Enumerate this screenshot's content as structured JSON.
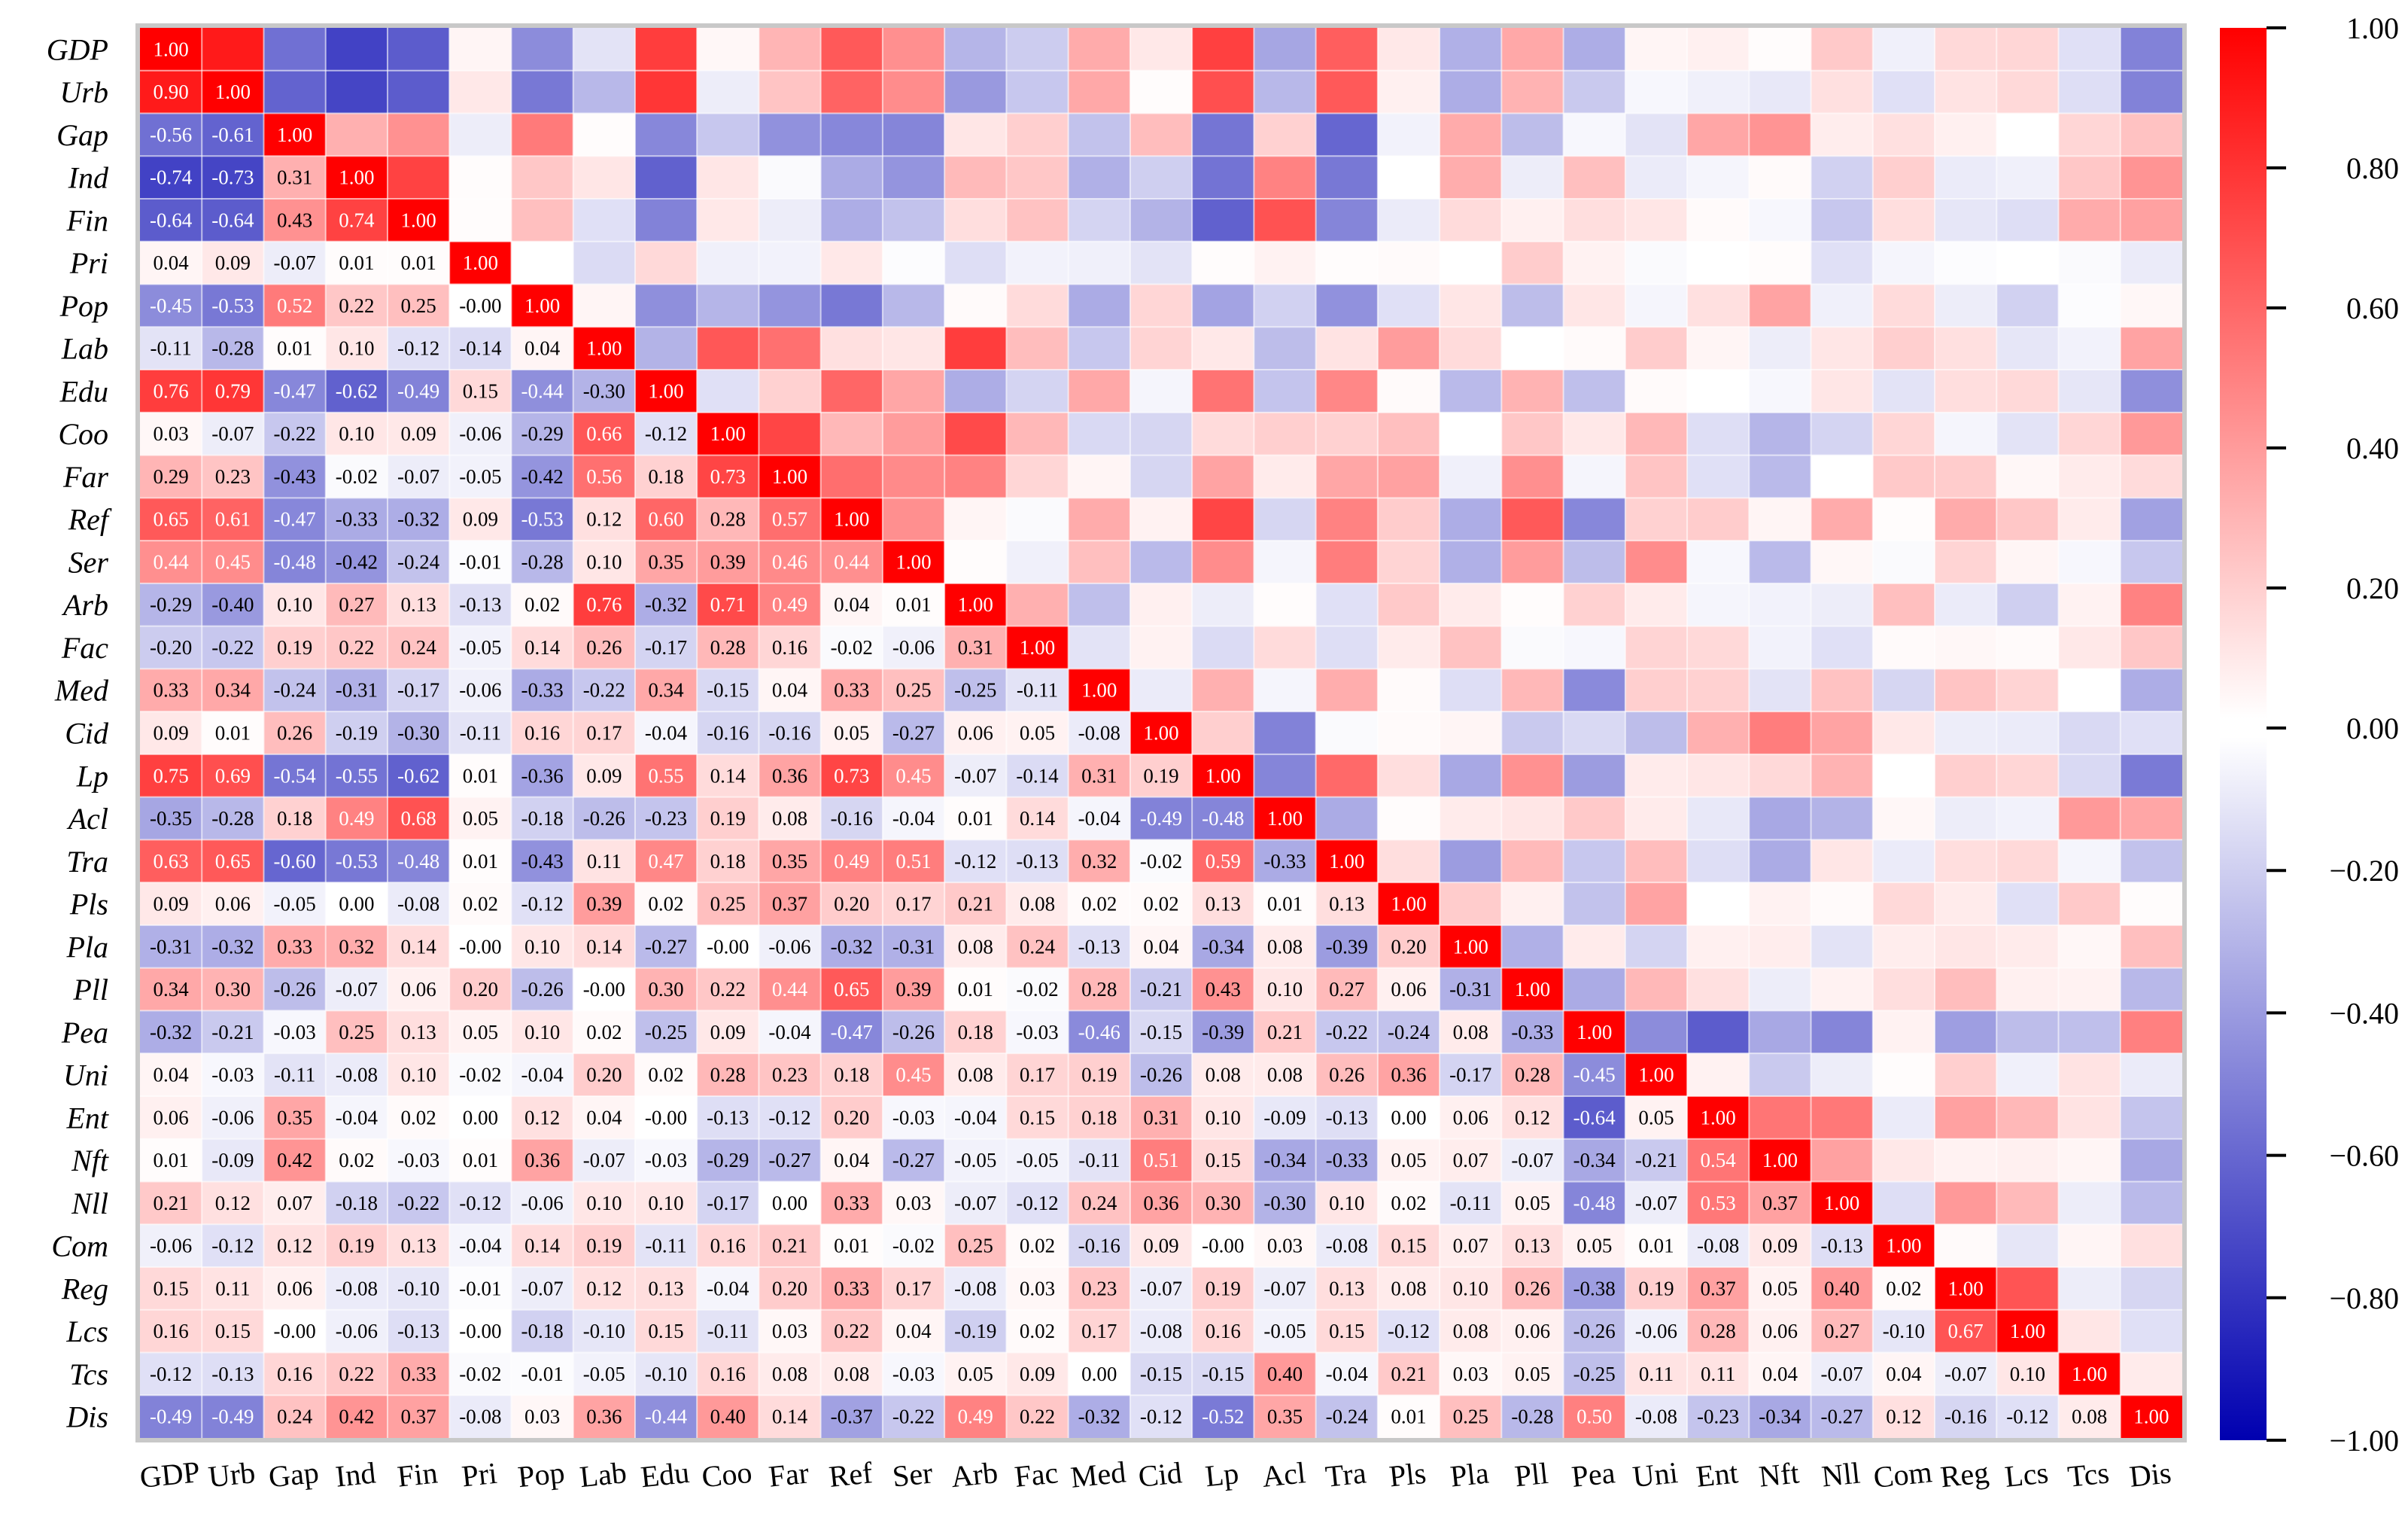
{
  "chart_data": {
    "type": "heatmap",
    "title": "",
    "variables": [
      "GDP",
      "Urb",
      "Gap",
      "Ind",
      "Fin",
      "Pri",
      "Pop",
      "Lab",
      "Edu",
      "Coo",
      "Far",
      "Ref",
      "Ser",
      "Arb",
      "Fac",
      "Med",
      "Cid",
      "Lp",
      "Acl",
      "Tra",
      "Pls",
      "Pla",
      "Pll",
      "Pea",
      "Uni",
      "Ent",
      "Nft",
      "Nll",
      "Com",
      "Reg",
      "Lcs",
      "Tcs",
      "Dis"
    ],
    "lower_triangle": [
      [
        1.0
      ],
      [
        0.9,
        1.0
      ],
      [
        -0.56,
        -0.61,
        1.0
      ],
      [
        -0.74,
        -0.73,
        0.31,
        1.0
      ],
      [
        -0.64,
        -0.64,
        0.43,
        0.74,
        1.0
      ],
      [
        0.04,
        0.09,
        -0.07,
        0.01,
        0.01,
        1.0
      ],
      [
        -0.45,
        -0.53,
        0.52,
        0.22,
        0.25,
        -0.0,
        1.0
      ],
      [
        -0.11,
        -0.28,
        0.01,
        0.1,
        -0.12,
        -0.14,
        0.04,
        1.0
      ],
      [
        0.76,
        0.79,
        -0.47,
        -0.62,
        -0.49,
        0.15,
        -0.44,
        -0.3,
        1.0
      ],
      [
        0.03,
        -0.07,
        -0.22,
        0.1,
        0.09,
        -0.06,
        -0.29,
        0.66,
        -0.12,
        1.0
      ],
      [
        0.29,
        0.23,
        -0.43,
        -0.02,
        -0.07,
        -0.05,
        -0.42,
        0.56,
        0.18,
        0.73,
        1.0
      ],
      [
        0.65,
        0.61,
        -0.47,
        -0.33,
        -0.32,
        0.09,
        -0.53,
        0.12,
        0.6,
        0.28,
        0.57,
        1.0
      ],
      [
        0.44,
        0.45,
        -0.48,
        -0.42,
        -0.24,
        -0.01,
        -0.28,
        0.1,
        0.35,
        0.39,
        0.46,
        0.44,
        1.0
      ],
      [
        -0.29,
        -0.4,
        0.1,
        0.27,
        0.13,
        -0.13,
        0.02,
        0.76,
        -0.32,
        0.71,
        0.49,
        0.04,
        0.01,
        1.0
      ],
      [
        -0.2,
        -0.22,
        0.19,
        0.22,
        0.24,
        -0.05,
        0.14,
        0.26,
        -0.17,
        0.28,
        0.16,
        -0.02,
        -0.06,
        0.31,
        1.0
      ],
      [
        0.33,
        0.34,
        -0.24,
        -0.31,
        -0.17,
        -0.06,
        -0.33,
        -0.22,
        0.34,
        -0.15,
        0.04,
        0.33,
        0.25,
        -0.25,
        -0.11,
        1.0
      ],
      [
        0.09,
        0.01,
        0.26,
        -0.19,
        -0.3,
        -0.11,
        0.16,
        0.17,
        -0.04,
        -0.16,
        -0.16,
        0.05,
        -0.27,
        0.06,
        0.05,
        -0.08,
        1.0
      ],
      [
        0.75,
        0.69,
        -0.54,
        -0.55,
        -0.62,
        0.01,
        -0.36,
        0.09,
        0.55,
        0.14,
        0.36,
        0.73,
        0.45,
        -0.07,
        -0.14,
        0.31,
        0.19,
        1.0
      ],
      [
        -0.35,
        -0.28,
        0.18,
        0.49,
        0.68,
        0.05,
        -0.18,
        -0.26,
        -0.23,
        0.19,
        0.08,
        -0.16,
        -0.04,
        0.01,
        0.14,
        -0.04,
        -0.49,
        -0.48,
        1.0
      ],
      [
        0.63,
        0.65,
        -0.6,
        -0.53,
        -0.48,
        0.01,
        -0.43,
        0.11,
        0.47,
        0.18,
        0.35,
        0.49,
        0.51,
        -0.12,
        -0.13,
        0.32,
        -0.02,
        0.59,
        -0.33,
        1.0
      ],
      [
        0.09,
        0.06,
        -0.05,
        0.0,
        -0.08,
        0.02,
        -0.12,
        0.39,
        0.02,
        0.25,
        0.37,
        0.2,
        0.17,
        0.21,
        0.08,
        0.02,
        0.02,
        0.13,
        0.01,
        0.13,
        1.0
      ],
      [
        -0.31,
        -0.32,
        0.33,
        0.32,
        0.14,
        -0.0,
        0.1,
        0.14,
        -0.27,
        -0.0,
        -0.06,
        -0.32,
        -0.31,
        0.08,
        0.24,
        -0.13,
        0.04,
        -0.34,
        0.08,
        -0.39,
        0.2,
        1.0
      ],
      [
        0.34,
        0.3,
        -0.26,
        -0.07,
        0.06,
        0.2,
        -0.26,
        -0.0,
        0.3,
        0.22,
        0.44,
        0.65,
        0.39,
        0.01,
        -0.02,
        0.28,
        -0.21,
        0.43,
        0.1,
        0.27,
        0.06,
        -0.31,
        1.0
      ],
      [
        -0.32,
        -0.21,
        -0.03,
        0.25,
        0.13,
        0.05,
        0.1,
        0.02,
        -0.25,
        0.09,
        -0.04,
        -0.47,
        -0.26,
        0.18,
        -0.03,
        -0.46,
        -0.15,
        -0.39,
        0.21,
        -0.22,
        -0.24,
        0.08,
        -0.33,
        1.0
      ],
      [
        0.04,
        -0.03,
        -0.11,
        -0.08,
        0.1,
        -0.02,
        -0.04,
        0.2,
        0.02,
        0.28,
        0.23,
        0.18,
        0.45,
        0.08,
        0.17,
        0.19,
        -0.26,
        0.08,
        0.08,
        0.26,
        0.36,
        -0.17,
        0.28,
        -0.45,
        1.0
      ],
      [
        0.06,
        -0.06,
        0.35,
        -0.04,
        0.02,
        0.0,
        0.12,
        0.04,
        -0.0,
        -0.13,
        -0.12,
        0.2,
        -0.03,
        -0.04,
        0.15,
        0.18,
        0.31,
        0.1,
        -0.09,
        -0.13,
        0.0,
        0.06,
        0.12,
        -0.64,
        0.05,
        1.0
      ],
      [
        0.01,
        -0.09,
        0.42,
        0.02,
        -0.03,
        0.01,
        0.36,
        -0.07,
        -0.03,
        -0.29,
        -0.27,
        0.04,
        -0.27,
        -0.05,
        -0.05,
        -0.11,
        0.51,
        0.15,
        -0.34,
        -0.33,
        0.05,
        0.07,
        -0.07,
        -0.34,
        -0.21,
        0.54,
        1.0
      ],
      [
        0.21,
        0.12,
        0.07,
        -0.18,
        -0.22,
        -0.12,
        -0.06,
        0.1,
        0.1,
        -0.17,
        0.0,
        0.33,
        0.03,
        -0.07,
        -0.12,
        0.24,
        0.36,
        0.3,
        -0.3,
        0.1,
        0.02,
        -0.11,
        0.05,
        -0.48,
        -0.07,
        0.53,
        0.37,
        1.0
      ],
      [
        -0.06,
        -0.12,
        0.12,
        0.19,
        0.13,
        -0.04,
        0.14,
        0.19,
        -0.11,
        0.16,
        0.21,
        0.01,
        -0.02,
        0.25,
        0.02,
        -0.16,
        0.09,
        -0.0,
        0.03,
        -0.08,
        0.15,
        0.07,
        0.13,
        0.05,
        0.01,
        -0.08,
        0.09,
        -0.13,
        1.0
      ],
      [
        0.15,
        0.11,
        0.06,
        -0.08,
        -0.1,
        -0.01,
        -0.07,
        0.12,
        0.13,
        -0.04,
        0.2,
        0.33,
        0.17,
        -0.08,
        0.03,
        0.23,
        -0.07,
        0.19,
        -0.07,
        0.13,
        0.08,
        0.1,
        0.26,
        -0.38,
        0.19,
        0.37,
        0.05,
        0.4,
        0.02,
        1.0
      ],
      [
        0.16,
        0.15,
        -0.0,
        -0.06,
        -0.13,
        -0.0,
        -0.18,
        -0.1,
        0.15,
        -0.11,
        0.03,
        0.22,
        0.04,
        -0.19,
        0.02,
        0.17,
        -0.08,
        0.16,
        -0.05,
        0.15,
        -0.12,
        0.08,
        0.06,
        -0.26,
        -0.06,
        0.28,
        0.06,
        0.27,
        -0.1,
        0.67,
        1.0
      ],
      [
        -0.12,
        -0.13,
        0.16,
        0.22,
        0.33,
        -0.02,
        -0.01,
        -0.05,
        -0.1,
        0.16,
        0.08,
        0.08,
        -0.03,
        0.05,
        0.09,
        0.0,
        -0.15,
        -0.15,
        0.4,
        -0.04,
        0.21,
        0.03,
        0.05,
        -0.25,
        0.11,
        0.11,
        0.04,
        -0.07,
        0.04,
        -0.07,
        0.1,
        1.0
      ],
      [
        -0.49,
        -0.49,
        0.24,
        0.42,
        0.37,
        -0.08,
        0.03,
        0.36,
        -0.44,
        0.4,
        0.14,
        -0.37,
        -0.22,
        0.49,
        0.22,
        -0.32,
        -0.12,
        -0.52,
        0.35,
        -0.24,
        0.01,
        0.25,
        -0.28,
        0.5,
        -0.08,
        -0.23,
        -0.34,
        -0.27,
        0.12,
        -0.16,
        -0.12,
        0.08,
        1.0
      ]
    ],
    "colorbar": {
      "min": -1.0,
      "max": 1.0,
      "ticks": [
        "1.00",
        "0.80",
        "0.60",
        "0.40",
        "0.20",
        "0.00",
        "−0.20",
        "−0.40",
        "−0.60",
        "−0.80",
        "−1.00"
      ]
    },
    "colors": {
      "max_color": "#ff0000",
      "zero_color": "#ffffff",
      "min_color": "#0000b0",
      "frame": "#c8c8c8",
      "grid": "#ffffff"
    }
  }
}
